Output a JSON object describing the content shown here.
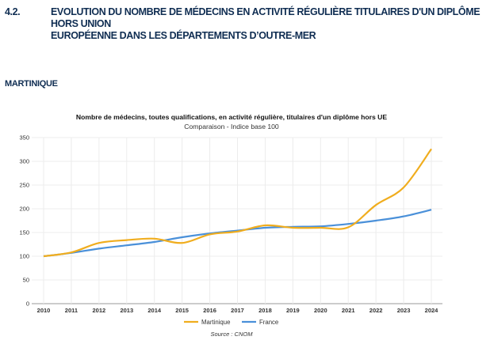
{
  "heading": {
    "number": "4.2.",
    "title_line1": "EVOLUTION DU NOMBRE DE MÉDECINS EN ACTIVITÉ RÉGULIÈRE TITULAIRES D'UN DIPLÔME HORS UNION",
    "title_line2": "EUROPÉENNE DANS LES DÉPARTEMENTS D’OUTRE-MER",
    "region": "MARTINIQUE"
  },
  "chart_data": {
    "type": "line",
    "title": "Nombre de médecins, toutes qualifications, en activité régulière, titulaires d'un diplôme hors UE",
    "subtitle": "Comparaison - Indice base 100",
    "xlabel": "",
    "ylabel": "",
    "x": [
      "2010",
      "2011",
      "2012",
      "2013",
      "2014",
      "2015",
      "2016",
      "2017",
      "2018",
      "2019",
      "2020",
      "2021",
      "2022",
      "2023",
      "2024"
    ],
    "ylim": [
      0,
      350
    ],
    "yticks": [
      "0",
      "50",
      "100",
      "150",
      "200",
      "250",
      "300",
      "350"
    ],
    "grid": true,
    "legend": "bottom",
    "series": [
      {
        "name": "Martinique",
        "color": "#f0ad1e",
        "values": [
          100,
          108,
          128,
          134,
          137,
          128,
          146,
          152,
          165,
          160,
          160,
          161,
          208,
          245,
          326
        ]
      },
      {
        "name": "France",
        "color": "#4a90d9",
        "values": [
          100,
          107,
          116,
          123,
          130,
          140,
          148,
          154,
          160,
          162,
          163,
          168,
          175,
          184,
          198
        ]
      }
    ],
    "source": "Source : CNOM"
  }
}
